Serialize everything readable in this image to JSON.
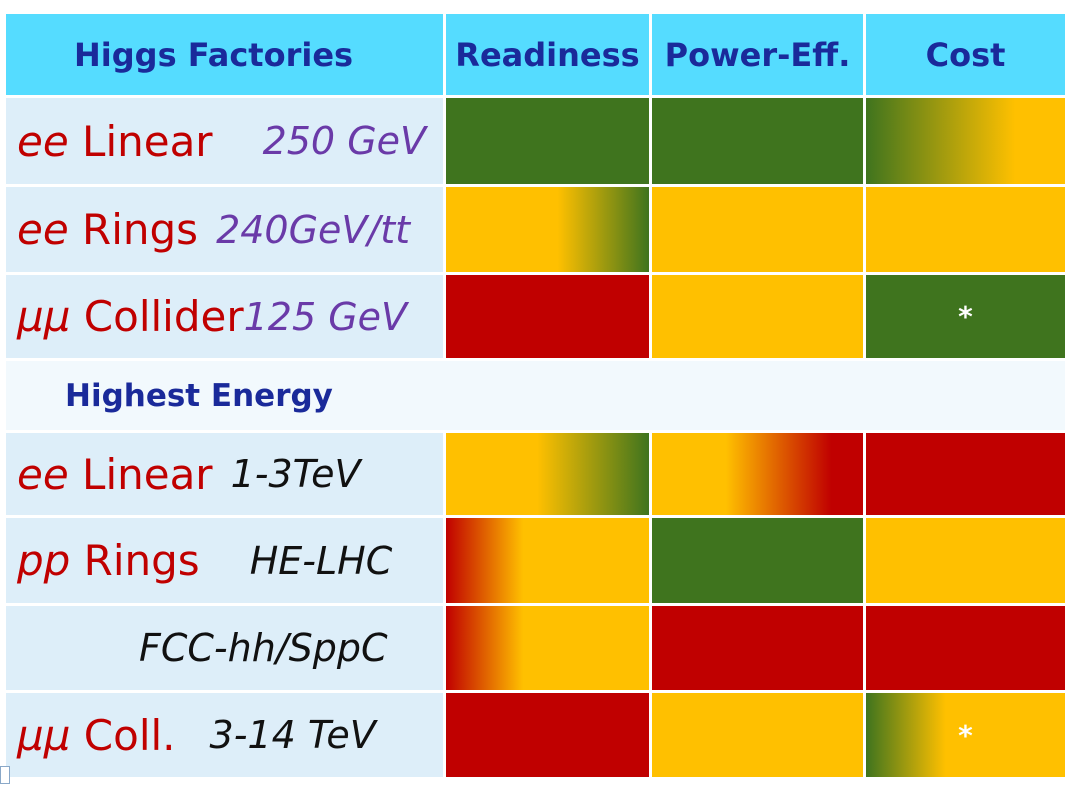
{
  "colors": {
    "green": "#3f741e",
    "yellow": "#ffc000",
    "red": "#c00000",
    "purple": "#6a3aa8",
    "black": "#111111"
  },
  "headers": [
    "Higgs Factories",
    "Readiness",
    "Power-Eff.",
    "Cost"
  ],
  "rows": [
    {
      "type": "data",
      "key": "ee",
      "name": " Linear",
      "sub": "250 GeV",
      "subColor": "purple",
      "subGap": "large",
      "cells": [
        {
          "kind": "solid",
          "color": "green"
        },
        {
          "kind": "solid",
          "color": "green"
        },
        {
          "kind": "gradient",
          "from": "green",
          "to": "yellow",
          "start": 0,
          "end": 75
        }
      ]
    },
    {
      "type": "data",
      "key": "ee",
      "name": " Rings",
      "sub": "240GeV/tt",
      "subColor": "purple",
      "subGap": "small",
      "cells": [
        {
          "kind": "gradient",
          "from": "yellow",
          "to": "green",
          "start": 55,
          "end": 100
        },
        {
          "kind": "solid",
          "color": "yellow"
        },
        {
          "kind": "solid",
          "color": "yellow"
        }
      ]
    },
    {
      "type": "data",
      "key": "μμ",
      "name": " Collider",
      "sub": "125 GeV",
      "subColor": "purple",
      "subGap": "tiny",
      "cells": [
        {
          "kind": "solid",
          "color": "red"
        },
        {
          "kind": "solid",
          "color": "yellow"
        },
        {
          "kind": "solid",
          "color": "green",
          "mark": "*"
        }
      ]
    },
    {
      "type": "section",
      "title": "Highest Energy"
    },
    {
      "type": "data",
      "key": "ee",
      "name": " Linear",
      "sub": "1-3TeV",
      "subColor": "black",
      "subGap": "small",
      "cells": [
        {
          "kind": "gradient",
          "from": "yellow",
          "to": "green",
          "start": 45,
          "end": 100
        },
        {
          "kind": "gradient",
          "from": "yellow",
          "to": "red",
          "start": 35,
          "end": 85
        },
        {
          "kind": "solid",
          "color": "red"
        }
      ]
    },
    {
      "type": "data",
      "key": "pp",
      "name": " Rings",
      "sub": "HE-LHC",
      "subColor": "black",
      "subGap": "large",
      "cells": [
        {
          "kind": "gradient",
          "from": "red",
          "to": "yellow",
          "start": 0,
          "end": 38
        },
        {
          "kind": "solid",
          "color": "green"
        },
        {
          "kind": "solid",
          "color": "yellow"
        }
      ]
    },
    {
      "type": "data",
      "key": "",
      "name": "",
      "sub": "FCC-hh/SppC",
      "subColor": "black",
      "subGap": "indent",
      "cells": [
        {
          "kind": "gradient",
          "from": "red",
          "to": "yellow",
          "start": 0,
          "end": 38
        },
        {
          "kind": "solid",
          "color": "red"
        },
        {
          "kind": "solid",
          "color": "red"
        }
      ]
    },
    {
      "type": "data",
      "key": "μμ",
      "name": " Coll.",
      "sub": "3-14 TeV",
      "subColor": "black",
      "subGap": "medium",
      "cells": [
        {
          "kind": "solid",
          "color": "red"
        },
        {
          "kind": "solid",
          "color": "yellow"
        },
        {
          "kind": "gradient",
          "from": "green",
          "to": "yellow",
          "start": 0,
          "end": 40,
          "mark": "*"
        }
      ]
    }
  ]
}
